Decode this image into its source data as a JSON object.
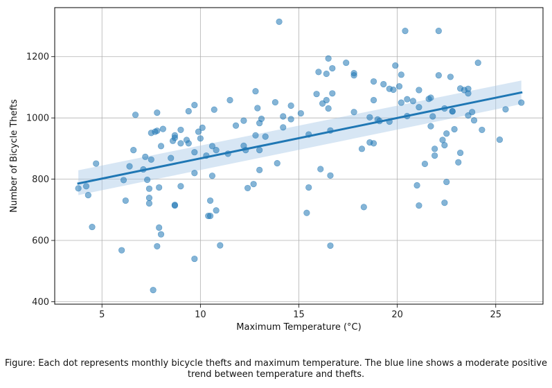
{
  "chart_data": {
    "type": "scatter",
    "title": "",
    "xlabel": "Maximum Temperature (°C)",
    "ylabel": "Number of Bicycle Thefts",
    "xlim": [
      2.6,
      27.4
    ],
    "ylim": [
      392,
      1360
    ],
    "xticks": [
      5,
      10,
      15,
      20,
      25
    ],
    "yticks": [
      400,
      600,
      800,
      1000,
      1200
    ],
    "grid": true,
    "point_color": "#1f77b4",
    "line_color": "#1f77b4",
    "band_color": "#a6c8e6",
    "trend": {
      "x": [
        3.8,
        26.3
      ],
      "y": [
        786,
        1083
      ]
    },
    "band_upper": {
      "x": [
        3.8,
        26.3
      ],
      "y": [
        829,
        1122
      ]
    },
    "band_lower": {
      "x": [
        3.8,
        26.3
      ],
      "y": [
        748,
        1045
      ]
    },
    "points": [
      [
        3.8,
        770
      ],
      [
        4.2,
        777
      ],
      [
        4.3,
        748
      ],
      [
        4.5,
        644
      ],
      [
        4.7,
        851
      ],
      [
        6.0,
        568
      ],
      [
        6.1,
        797
      ],
      [
        6.2,
        730
      ],
      [
        6.4,
        842
      ],
      [
        6.6,
        895
      ],
      [
        6.7,
        1010
      ],
      [
        7.1,
        832
      ],
      [
        7.2,
        873
      ],
      [
        7.3,
        798
      ],
      [
        7.4,
        769
      ],
      [
        7.4,
        739
      ],
      [
        7.4,
        721
      ],
      [
        7.5,
        951
      ],
      [
        7.5,
        864
      ],
      [
        7.6,
        438
      ],
      [
        7.7,
        955
      ],
      [
        7.8,
        958
      ],
      [
        7.8,
        1017
      ],
      [
        7.8,
        581
      ],
      [
        7.9,
        773
      ],
      [
        7.9,
        642
      ],
      [
        8.0,
        620
      ],
      [
        8.0,
        908
      ],
      [
        8.1,
        964
      ],
      [
        8.5,
        869
      ],
      [
        8.6,
        925
      ],
      [
        8.7,
        943
      ],
      [
        8.7,
        935
      ],
      [
        8.7,
        716
      ],
      [
        8.7,
        714
      ],
      [
        9.0,
        777
      ],
      [
        9.0,
        961
      ],
      [
        9.0,
        917
      ],
      [
        9.3,
        928
      ],
      [
        9.4,
        1022
      ],
      [
        9.4,
        917
      ],
      [
        9.7,
        1042
      ],
      [
        9.7,
        888
      ],
      [
        9.7,
        820
      ],
      [
        9.7,
        540
      ],
      [
        9.9,
        955
      ],
      [
        10.1,
        968
      ],
      [
        10.0,
        933
      ],
      [
        10.3,
        877
      ],
      [
        10.4,
        680
      ],
      [
        10.5,
        680
      ],
      [
        10.5,
        730
      ],
      [
        10.6,
        908
      ],
      [
        10.6,
        811
      ],
      [
        10.7,
        1027
      ],
      [
        10.8,
        698
      ],
      [
        10.8,
        895
      ],
      [
        11.0,
        584
      ],
      [
        11.4,
        883
      ],
      [
        11.5,
        1058
      ],
      [
        11.8,
        975
      ],
      [
        12.2,
        991
      ],
      [
        12.2,
        909
      ],
      [
        12.3,
        895
      ],
      [
        12.4,
        771
      ],
      [
        12.7,
        784
      ],
      [
        12.8,
        943
      ],
      [
        12.8,
        1087
      ],
      [
        12.9,
        1032
      ],
      [
        13.0,
        895
      ],
      [
        13.0,
        983
      ],
      [
        13.0,
        830
      ],
      [
        13.1,
        997
      ],
      [
        13.3,
        939
      ],
      [
        13.8,
        1051
      ],
      [
        13.9,
        852
      ],
      [
        14.2,
        1005
      ],
      [
        14.2,
        969
      ],
      [
        14.0,
        1314
      ],
      [
        14.6,
        1040
      ],
      [
        14.6,
        996
      ],
      [
        15.1,
        1015
      ],
      [
        15.4,
        690
      ],
      [
        15.5,
        773
      ],
      [
        15.5,
        946
      ],
      [
        15.9,
        1078
      ],
      [
        16.0,
        1150
      ],
      [
        16.1,
        833
      ],
      [
        16.2,
        1047
      ],
      [
        16.4,
        1144
      ],
      [
        16.4,
        1058
      ],
      [
        16.5,
        1031
      ],
      [
        16.5,
        1194
      ],
      [
        16.6,
        959
      ],
      [
        16.6,
        812
      ],
      [
        16.6,
        583
      ],
      [
        16.7,
        1080
      ],
      [
        16.7,
        1162
      ],
      [
        17.4,
        1180
      ],
      [
        17.8,
        1139
      ],
      [
        17.8,
        1146
      ],
      [
        17.8,
        1019
      ],
      [
        18.2,
        899
      ],
      [
        18.3,
        709
      ],
      [
        18.6,
        1002
      ],
      [
        18.6,
        920
      ],
      [
        18.8,
        917
      ],
      [
        18.8,
        1119
      ],
      [
        18.8,
        1058
      ],
      [
        19.0,
        995
      ],
      [
        19.1,
        990
      ],
      [
        19.3,
        1110
      ],
      [
        19.6,
        1095
      ],
      [
        19.6,
        988
      ],
      [
        19.8,
        1092
      ],
      [
        19.9,
        1171
      ],
      [
        20.1,
        1103
      ],
      [
        20.2,
        1050
      ],
      [
        20.2,
        1141
      ],
      [
        20.4,
        1284
      ],
      [
        20.5,
        1061
      ],
      [
        20.5,
        1006
      ],
      [
        20.8,
        1055
      ],
      [
        21.0,
        780
      ],
      [
        21.1,
        1091
      ],
      [
        21.1,
        1035
      ],
      [
        21.1,
        714
      ],
      [
        21.4,
        850
      ],
      [
        21.6,
        1062
      ],
      [
        21.7,
        1066
      ],
      [
        21.7,
        973
      ],
      [
        21.8,
        1005
      ],
      [
        21.9,
        877
      ],
      [
        21.9,
        899
      ],
      [
        22.1,
        1284
      ],
      [
        22.1,
        1139
      ],
      [
        22.3,
        928
      ],
      [
        22.4,
        1031
      ],
      [
        22.4,
        911
      ],
      [
        22.4,
        723
      ],
      [
        22.5,
        791
      ],
      [
        22.5,
        949
      ],
      [
        22.7,
        1134
      ],
      [
        22.8,
        1022
      ],
      [
        22.8,
        1021
      ],
      [
        22.9,
        963
      ],
      [
        23.1,
        855
      ],
      [
        23.2,
        1096
      ],
      [
        23.2,
        886
      ],
      [
        23.4,
        1091
      ],
      [
        23.6,
        1008
      ],
      [
        23.6,
        1080
      ],
      [
        23.6,
        1095
      ],
      [
        23.8,
        1019
      ],
      [
        23.9,
        992
      ],
      [
        24.1,
        1180
      ],
      [
        24.3,
        961
      ],
      [
        25.2,
        929
      ],
      [
        25.5,
        1028
      ],
      [
        26.3,
        1050
      ]
    ]
  },
  "caption": "Figure: Each dot represents monthly bicycle thefts and maximum temperature. The blue line shows a moderate positive trend between temperature and thefts."
}
